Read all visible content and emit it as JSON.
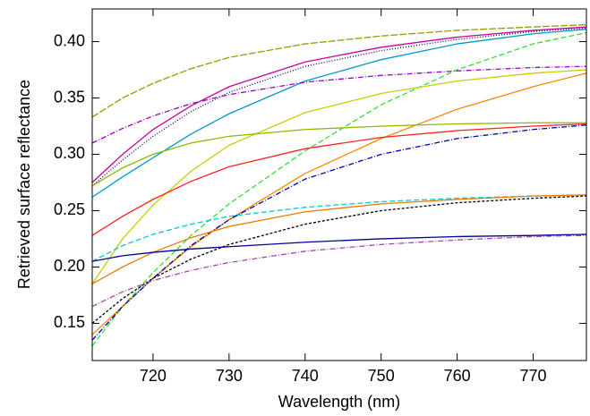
{
  "chart_data": {
    "type": "line",
    "x_label": "Wavelength (nm)",
    "y_label": "Retrieved surface reflectance",
    "x": [
      712,
      716,
      720,
      725,
      730,
      740,
      750,
      760,
      770,
      777
    ],
    "series": [
      {
        "color": "#999900",
        "dash": "8,2",
        "values": [
          0.333,
          0.35,
          0.363,
          0.376,
          0.386,
          0.398,
          0.405,
          0.41,
          0.413,
          0.415
        ]
      },
      {
        "color": "#cc0099",
        "dash": "none",
        "values": [
          0.275,
          0.3,
          0.322,
          0.343,
          0.36,
          0.382,
          0.395,
          0.404,
          0.41,
          0.413
        ]
      },
      {
        "color": "#000066",
        "dash": "1,2",
        "values": [
          0.272,
          0.295,
          0.316,
          0.338,
          0.355,
          0.378,
          0.392,
          0.402,
          0.409,
          0.412
        ]
      },
      {
        "color": "#0099cc",
        "dash": "none",
        "values": [
          0.262,
          0.28,
          0.297,
          0.318,
          0.336,
          0.365,
          0.384,
          0.398,
          0.407,
          0.411
        ]
      },
      {
        "color": "#33dd33",
        "dash": "6,3",
        "values": [
          0.13,
          0.165,
          0.195,
          0.228,
          0.256,
          0.303,
          0.344,
          0.375,
          0.398,
          0.408
        ]
      },
      {
        "color": "#9900cc",
        "dash": "6,2,1,2",
        "values": [
          0.31,
          0.323,
          0.334,
          0.345,
          0.353,
          0.364,
          0.37,
          0.374,
          0.377,
          0.378
        ]
      },
      {
        "color": "#cccc00",
        "dash": "none",
        "values": [
          0.185,
          0.225,
          0.255,
          0.285,
          0.308,
          0.337,
          0.354,
          0.365,
          0.372,
          0.375
        ]
      },
      {
        "color": "#ff8800",
        "dash": "none",
        "values": [
          0.14,
          0.165,
          0.19,
          0.218,
          0.242,
          0.283,
          0.314,
          0.34,
          0.36,
          0.372
        ]
      },
      {
        "color": "#88bb00",
        "dash": "none",
        "values": [
          0.272,
          0.288,
          0.3,
          0.31,
          0.316,
          0.322,
          0.325,
          0.327,
          0.328,
          0.328
        ]
      },
      {
        "color": "#ff2222",
        "dash": "none",
        "values": [
          0.228,
          0.245,
          0.26,
          0.276,
          0.289,
          0.305,
          0.315,
          0.321,
          0.325,
          0.327
        ]
      },
      {
        "color": "#0000aa",
        "dash": "6,2,1,2",
        "values": [
          0.135,
          0.165,
          0.19,
          0.219,
          0.242,
          0.278,
          0.3,
          0.314,
          0.322,
          0.326
        ]
      },
      {
        "color": "#00cccc",
        "dash": "6,3",
        "values": [
          0.205,
          0.219,
          0.229,
          0.238,
          0.245,
          0.253,
          0.258,
          0.261,
          0.263,
          0.264
        ]
      },
      {
        "color": "#ee7700",
        "dash": "none",
        "values": [
          0.185,
          0.2,
          0.213,
          0.226,
          0.236,
          0.249,
          0.256,
          0.26,
          0.263,
          0.264
        ]
      },
      {
        "color": "#000000",
        "dash": "3,2",
        "values": [
          0.15,
          0.172,
          0.19,
          0.207,
          0.22,
          0.238,
          0.25,
          0.257,
          0.261,
          0.263
        ]
      },
      {
        "color": "#000099",
        "dash": "none",
        "values": [
          0.205,
          0.21,
          0.213,
          0.216,
          0.218,
          0.222,
          0.225,
          0.227,
          0.228,
          0.229
        ]
      },
      {
        "color": "#aa44aa",
        "dash": "6,2,1,2",
        "values": [
          0.165,
          0.178,
          0.188,
          0.197,
          0.204,
          0.214,
          0.22,
          0.224,
          0.227,
          0.228
        ]
      }
    ],
    "xlim": [
      712,
      777
    ],
    "ylim": [
      0.117,
      0.429
    ],
    "xticks": [
      720,
      730,
      740,
      750,
      760,
      770
    ],
    "yticks": [
      0.15,
      {
        "value": 0.2,
        "label": "0.20"
      },
      0.25,
      {
        "value": 0.3,
        "label": "0.30"
      },
      0.35,
      {
        "value": 0.4,
        "label": "0.40"
      }
    ],
    "grid": false
  }
}
